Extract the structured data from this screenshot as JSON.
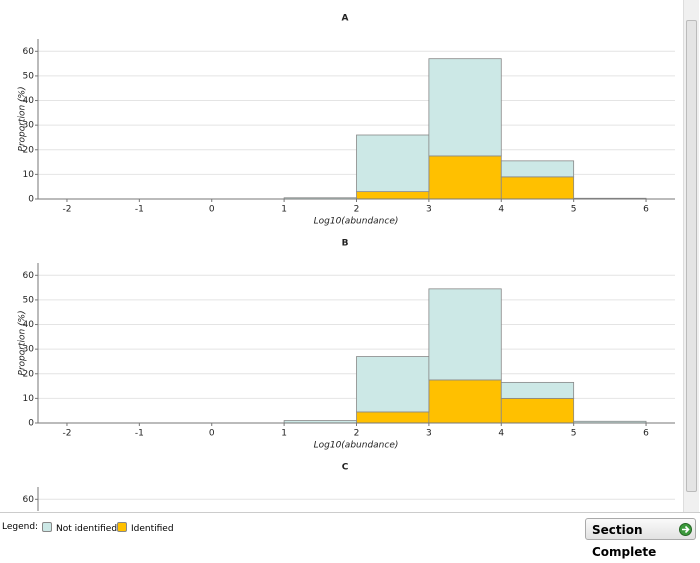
{
  "chart_data": [
    {
      "type": "histogram",
      "title": "A",
      "xlabel": "Log10(abundance)",
      "ylabel": "Proportion (%)",
      "bins": [
        -2,
        -1,
        0,
        1,
        2,
        3,
        4,
        5,
        6
      ],
      "series": [
        {
          "name": "Identified",
          "color": "#ffc000",
          "values": [
            0,
            0,
            0,
            0,
            3,
            17.5,
            9,
            0
          ]
        },
        {
          "name": "Not identified",
          "color": "#cce8e6",
          "values": [
            0,
            0,
            0,
            0.5,
            23,
            39.5,
            6.5,
            0.3
          ]
        }
      ],
      "xlim": [
        -2.4,
        6.4
      ],
      "xticks": [
        -2,
        -1,
        0,
        1,
        2,
        3,
        4,
        5,
        6
      ],
      "ylim": [
        0,
        65
      ],
      "yticks": [
        0,
        10,
        20,
        30,
        40,
        50,
        60
      ],
      "grid": true
    },
    {
      "type": "histogram",
      "title": "B",
      "xlabel": "Log10(abundance)",
      "ylabel": "Proportion (%)",
      "bins": [
        -2,
        -1,
        0,
        1,
        2,
        3,
        4,
        5,
        6
      ],
      "series": [
        {
          "name": "Identified",
          "color": "#ffc000",
          "values": [
            0,
            0,
            0,
            0,
            4.5,
            17.5,
            10,
            0
          ]
        },
        {
          "name": "Not identified",
          "color": "#cce8e6",
          "values": [
            0,
            0,
            0,
            1,
            22.5,
            37,
            6.5,
            0.7
          ]
        }
      ],
      "xlim": [
        -2.4,
        6.4
      ],
      "xticks": [
        -2,
        -1,
        0,
        1,
        2,
        3,
        4,
        5,
        6
      ],
      "ylim": [
        0,
        65
      ],
      "yticks": [
        0,
        10,
        20,
        30,
        40,
        50,
        60
      ],
      "grid": true
    },
    {
      "type": "histogram",
      "title": "C",
      "ylim": [
        0,
        65
      ],
      "yticks": [
        60
      ],
      "grid": true
    }
  ],
  "legend_label": "Legend:",
  "button": "Section Complete"
}
